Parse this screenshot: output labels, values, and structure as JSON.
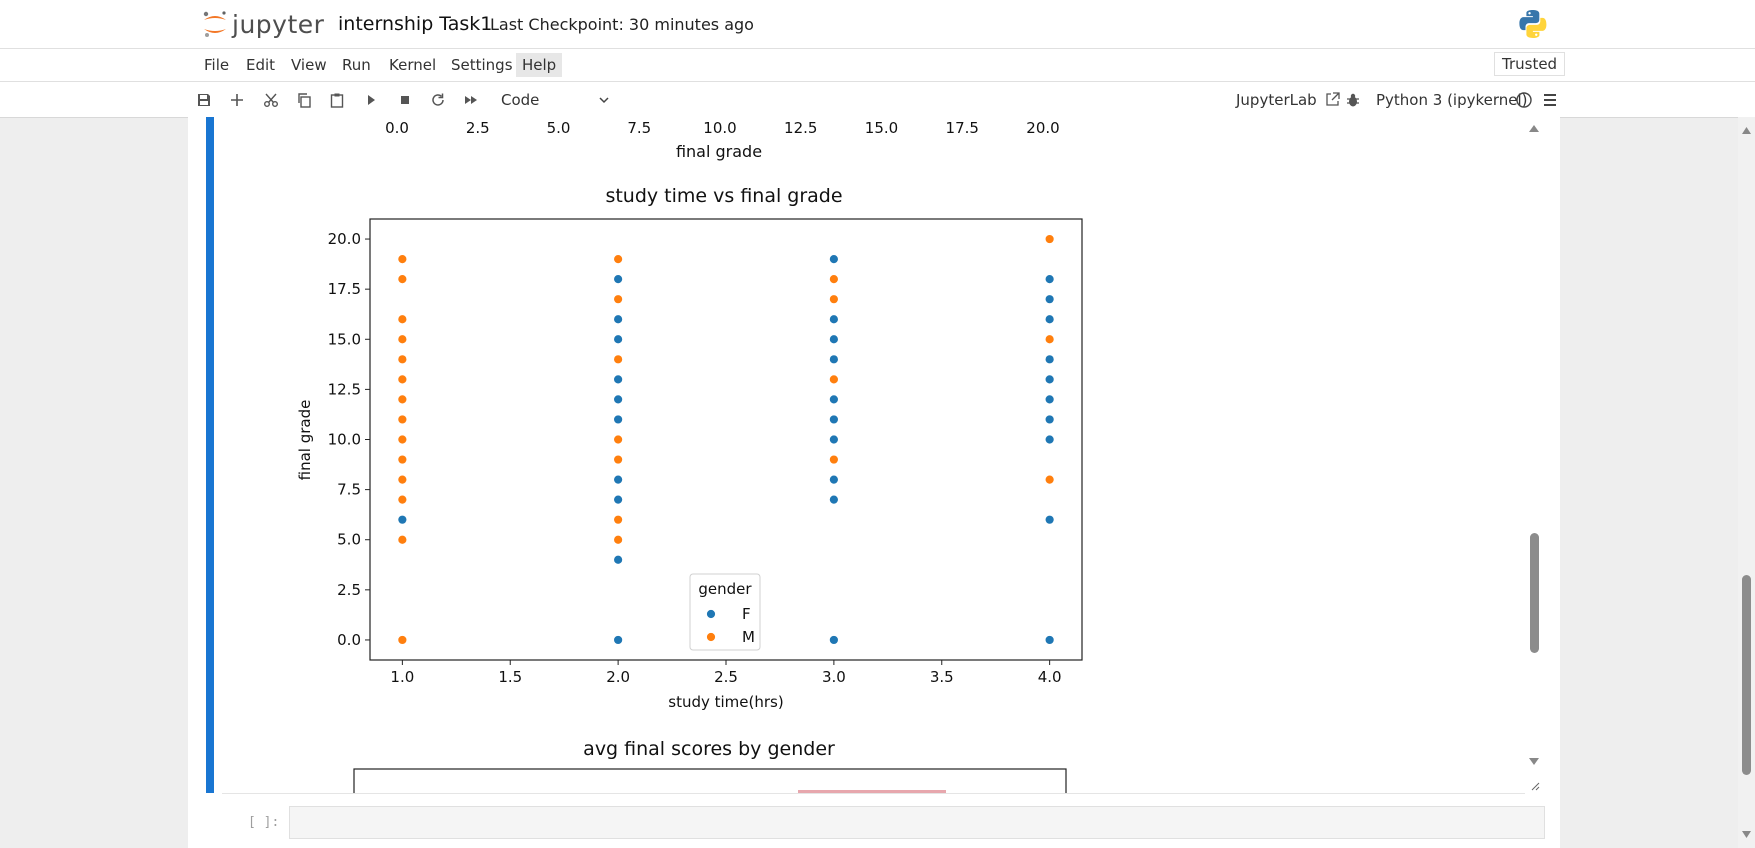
{
  "app": {
    "logo_text": "jupyter",
    "notebook_title": "internship Task1",
    "checkpoint": "Last Checkpoint: 30 minutes ago"
  },
  "menu": {
    "items": [
      "File",
      "Edit",
      "View",
      "Run",
      "Kernel",
      "Settings",
      "Help"
    ],
    "active": "Help",
    "trusted": "Trusted"
  },
  "toolbar": {
    "cell_type": "Code",
    "jupyterlab_link": "JupyterLab",
    "kernel": "Python 3 (ipykernel)",
    "icons": [
      "save-icon",
      "add-icon",
      "cut-icon",
      "copy-icon",
      "paste-icon",
      "run-icon",
      "stop-icon",
      "restart-icon",
      "fast-forward-icon"
    ]
  },
  "prev_chart_axis": {
    "ticks": [
      "0.0",
      "2.5",
      "5.0",
      "7.5",
      "10.0",
      "12.5",
      "15.0",
      "17.5",
      "20.0"
    ],
    "xlabel": "final grade"
  },
  "chart_data": {
    "type": "scatter",
    "title": "study time vs final grade",
    "xlabel": "study time(hrs)",
    "ylabel": "final grade",
    "xlim": [
      0.85,
      4.15
    ],
    "ylim": [
      -1.0,
      21.0
    ],
    "xticks": [
      "1.0",
      "1.5",
      "2.0",
      "2.5",
      "3.0",
      "3.5",
      "4.0"
    ],
    "yticks": [
      "0.0",
      "2.5",
      "5.0",
      "7.5",
      "10.0",
      "12.5",
      "15.0",
      "17.5",
      "20.0"
    ],
    "legend": {
      "title": "gender",
      "placement": "lower-center"
    },
    "grid": false,
    "series": [
      {
        "name": "F",
        "color": "#1f77b4",
        "points": [
          [
            1,
            6
          ],
          [
            1,
            0
          ],
          [
            2,
            18
          ],
          [
            2,
            16
          ],
          [
            2,
            15
          ],
          [
            2,
            13
          ],
          [
            2,
            12
          ],
          [
            2,
            11
          ],
          [
            2,
            8
          ],
          [
            2,
            7
          ],
          [
            2,
            4
          ],
          [
            2,
            0
          ],
          [
            3,
            19
          ],
          [
            3,
            16
          ],
          [
            3,
            15
          ],
          [
            3,
            14
          ],
          [
            3,
            12
          ],
          [
            3,
            11
          ],
          [
            3,
            10
          ],
          [
            3,
            8
          ],
          [
            3,
            7
          ],
          [
            3,
            0
          ],
          [
            4,
            18
          ],
          [
            4,
            17
          ],
          [
            4,
            16
          ],
          [
            4,
            14
          ],
          [
            4,
            13
          ],
          [
            4,
            12
          ],
          [
            4,
            11
          ],
          [
            4,
            10
          ],
          [
            4,
            6
          ],
          [
            4,
            0
          ]
        ]
      },
      {
        "name": "M",
        "color": "#ff7f0e",
        "points": [
          [
            1,
            19
          ],
          [
            1,
            18
          ],
          [
            1,
            16
          ],
          [
            1,
            15
          ],
          [
            1,
            14
          ],
          [
            1,
            13
          ],
          [
            1,
            12
          ],
          [
            1,
            11
          ],
          [
            1,
            10
          ],
          [
            1,
            9
          ],
          [
            1,
            8
          ],
          [
            1,
            7
          ],
          [
            1,
            5
          ],
          [
            1,
            0
          ],
          [
            2,
            19
          ],
          [
            2,
            17
          ],
          [
            2,
            14
          ],
          [
            2,
            10
          ],
          [
            2,
            9
          ],
          [
            2,
            6
          ],
          [
            2,
            5
          ],
          [
            3,
            18
          ],
          [
            3,
            17
          ],
          [
            3,
            13
          ],
          [
            3,
            9
          ],
          [
            4,
            20
          ],
          [
            4,
            15
          ],
          [
            4,
            8
          ]
        ]
      }
    ]
  },
  "next_chart": {
    "title": "avg final scores by gender"
  },
  "input_cell": {
    "prompt": "[ ]:"
  }
}
